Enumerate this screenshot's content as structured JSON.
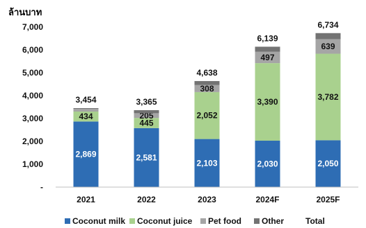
{
  "chart_data": {
    "type": "bar",
    "stacked": true,
    "unit_label": "ล้านบาท",
    "categories": [
      "2021",
      "2022",
      "2023",
      "2024F",
      "2025F"
    ],
    "series": [
      {
        "name": "Coconut milk",
        "color": "#2E6DB4",
        "values": [
          2869,
          2581,
          2103,
          2030,
          2050
        ],
        "labels": [
          "2,869",
          "2,581",
          "2,103",
          "2,030",
          "2,050"
        ]
      },
      {
        "name": "Coconut juice",
        "color": "#A9D18E",
        "values": [
          434,
          445,
          2052,
          3390,
          3782
        ],
        "labels": [
          "434",
          "445",
          "2,052",
          "3,390",
          "3,782"
        ]
      },
      {
        "name": "Pet food",
        "color": "#A5A5A5",
        "values": [
          120,
          205,
          308,
          497,
          639
        ],
        "labels": [
          "",
          "205",
          "308",
          "497",
          "639"
        ]
      },
      {
        "name": "Other",
        "color": "#737373",
        "values": [
          31,
          134,
          175,
          222,
          263
        ],
        "labels": [
          "",
          "",
          "",
          "",
          ""
        ]
      }
    ],
    "totals": {
      "name": "Total",
      "values": [
        3454,
        3365,
        4638,
        6139,
        6734
      ],
      "labels": [
        "3,454",
        "3,365",
        "4,638",
        "6,139",
        "6,734"
      ]
    },
    "ylim": [
      0,
      7000
    ],
    "yticks": [
      0,
      1000,
      2000,
      3000,
      4000,
      5000,
      6000,
      7000
    ],
    "ytick_labels": [
      "-",
      "1,000",
      "2,000",
      "3,000",
      "4,000",
      "5,000",
      "6,000",
      "7,000"
    ],
    "grid": false,
    "legend_position": "bottom"
  }
}
